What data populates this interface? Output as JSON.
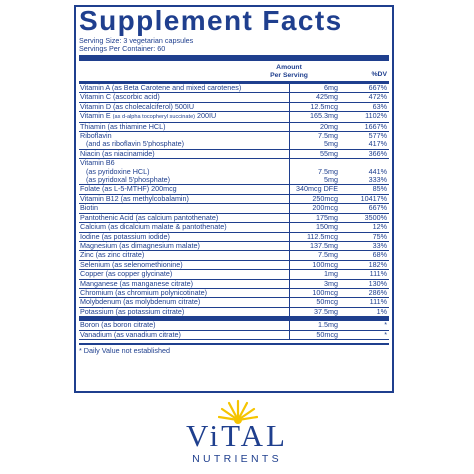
{
  "title": "Supplement Facts",
  "serving_size": "Serving Size: 3 vegetarian capsules",
  "servings_per_container": "Servings Per Container: 60",
  "header": {
    "amount_line1": "Amount",
    "amount_line2": "Per Serving",
    "dv": "%DV"
  },
  "rows": [
    {
      "name": "Vitamin A (as Beta Carotene and mixed carotenes)",
      "amount": "6mg",
      "dv": "667%"
    },
    {
      "name": "Vitamin C (ascorbic acid)",
      "amount": "425mg",
      "dv": "472%"
    },
    {
      "name": "Vitamin D (as cholecalciferol) 500IU",
      "amount": "12.5mcg",
      "dv": "63%"
    },
    {
      "name": "Vitamin E",
      "name_small": "(as d-alpha tocopheryl succinate)",
      "name_tail": "200IU",
      "amount": "165.3mg",
      "dv": "1102%"
    },
    {
      "name": "Thiamin (as thiamine HCL)",
      "amount": "20mg",
      "dv": "1667%"
    },
    {
      "name": "Riboflavin",
      "amount": "7.5mg",
      "dv": "577%",
      "sub": "(and as riboflavin 5'phosphate)",
      "sub_amount": "5mg",
      "sub_dv": "417%"
    },
    {
      "name": "Niacin (as niacinamide)",
      "amount": "55mg",
      "dv": "366%"
    },
    {
      "name": "Vitamin B6",
      "amount": "",
      "dv": "",
      "sub": "(as pyridoxine HCL)",
      "sub_amount": "7.5mg",
      "sub_dv": "441%",
      "sub2": "(as pyridoxal 5'phosphate)",
      "sub2_amount": "5mg",
      "sub2_dv": "333%"
    },
    {
      "name": "Folate (as L-5-MTHF) 200mcg",
      "amount": "340mcg DFE",
      "dv": "85%"
    },
    {
      "name": "Vitamin B12 (as methylcobalamin)",
      "amount": "250mcg",
      "dv": "10417%"
    },
    {
      "name": "Biotin",
      "amount": "200mcg",
      "dv": "667%"
    },
    {
      "name": "Pantothenic Acid (as calcium pantothenate)",
      "amount": "175mg",
      "dv": "3500%"
    },
    {
      "name": "Calcium (as dicalcium malate & pantothenate)",
      "amount": "150mg",
      "dv": "12%"
    },
    {
      "name": "Iodine (as potassium iodide)",
      "amount": "112.5mcg",
      "dv": "75%"
    },
    {
      "name": "Magnesium (as dimagnesium malate)",
      "amount": "137.5mg",
      "dv": "33%"
    },
    {
      "name": "Zinc (as zinc citrate)",
      "amount": "7.5mg",
      "dv": "68%"
    },
    {
      "name": "Selenium (as selenomethionine)",
      "amount": "100mcg",
      "dv": "182%"
    },
    {
      "name": "Copper (as copper glycinate)",
      "amount": "1mg",
      "dv": "111%"
    },
    {
      "name": "Manganese (as manganese citrate)",
      "amount": "3mg",
      "dv": "130%"
    },
    {
      "name": "Chromium (as chromium polynicotinate)",
      "amount": "100mcg",
      "dv": "286%"
    },
    {
      "name": "Molybdenum (as molybdenum citrate)",
      "amount": "50mcg",
      "dv": "111%"
    },
    {
      "name": "Potassium (as potassium citrate)",
      "amount": "37.5mg",
      "dv": "1%"
    }
  ],
  "rows_b": [
    {
      "name": "Boron (as boron citrate)",
      "amount": "1.5mg",
      "dv": "*"
    },
    {
      "name": "Vanadium (as vanadium citrate)",
      "amount": "50mcg",
      "dv": "*"
    }
  ],
  "footnote": "* Daily Value not established",
  "brand": {
    "name": "ViTAL",
    "tagline": "NUTRIENTS"
  },
  "colors": {
    "primary": "#1f3f8e",
    "sun": "#f5c400"
  }
}
